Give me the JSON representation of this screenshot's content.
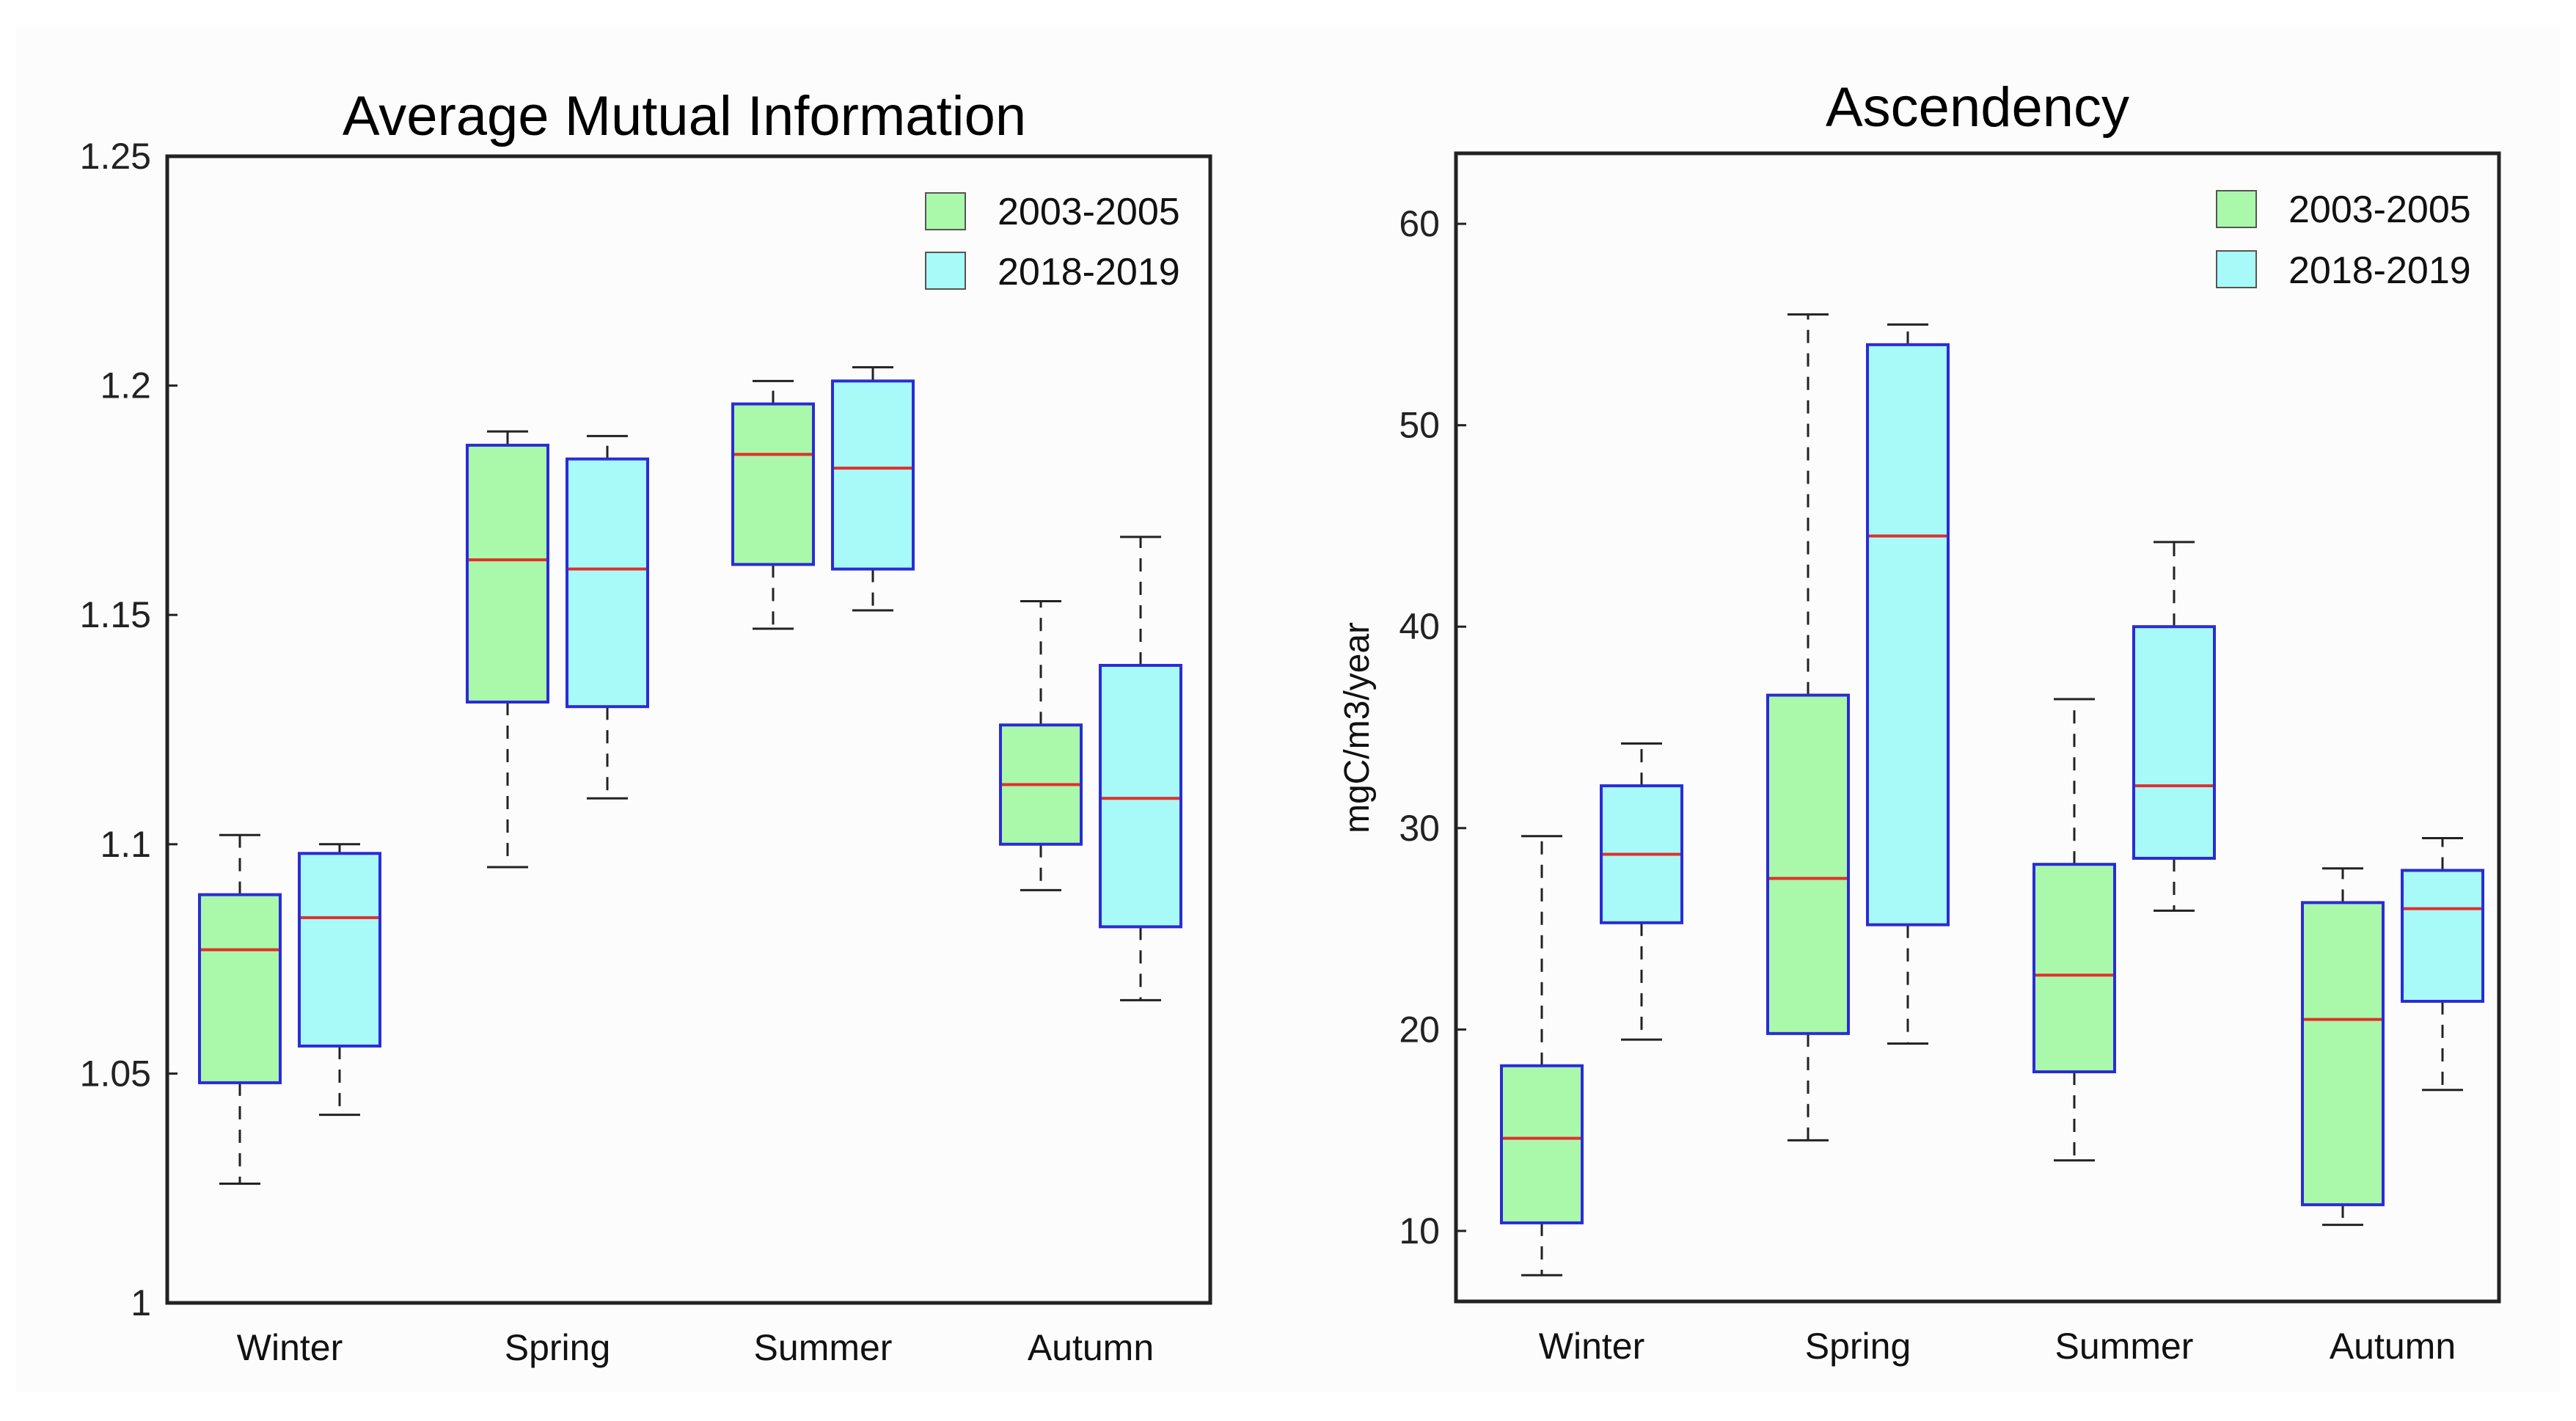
{
  "colors": {
    "background": "#fcfcfc",
    "box_edge": "#2b2bd6",
    "median": "#e0302c",
    "whisker": "#222222",
    "group_2003_2005": "#aaf8aa",
    "group_2018_2019": "#a8faf8"
  },
  "chart_data": [
    {
      "type": "boxplot",
      "title": "Average Mutual Information",
      "xlabel": "",
      "ylabel": "",
      "ylim": [
        1,
        1.25
      ],
      "yticks": [
        {
          "value": 1,
          "label": "1"
        },
        {
          "value": 1.05,
          "label": "1.05"
        },
        {
          "value": 1.1,
          "label": "1.1"
        },
        {
          "value": 1.15,
          "label": "1.15"
        },
        {
          "value": 1.2,
          "label": "1.2"
        },
        {
          "value": 1.25,
          "label": "1.25"
        }
      ],
      "categories": [
        "Winter",
        "Spring",
        "Summer",
        "Autumn"
      ],
      "legend": {
        "position": "top-right",
        "entries": [
          "2003-2005",
          "2018-2019"
        ]
      },
      "series": [
        {
          "name": "2003-2005",
          "color": "#aaf8aa",
          "boxes": [
            {
              "min": 1.026,
              "q1": 1.048,
              "median": 1.077,
              "q3": 1.089,
              "max": 1.102
            },
            {
              "min": 1.095,
              "q1": 1.131,
              "median": 1.162,
              "q3": 1.187,
              "max": 1.19
            },
            {
              "min": 1.147,
              "q1": 1.161,
              "median": 1.185,
              "q3": 1.196,
              "max": 1.201
            },
            {
              "min": 1.09,
              "q1": 1.1,
              "median": 1.113,
              "q3": 1.126,
              "max": 1.153
            }
          ]
        },
        {
          "name": "2018-2019",
          "color": "#a8faf8",
          "boxes": [
            {
              "min": 1.041,
              "q1": 1.056,
              "median": 1.084,
              "q3": 1.098,
              "max": 1.1
            },
            {
              "min": 1.11,
              "q1": 1.13,
              "median": 1.16,
              "q3": 1.184,
              "max": 1.189
            },
            {
              "min": 1.151,
              "q1": 1.16,
              "median": 1.182,
              "q3": 1.201,
              "max": 1.204
            },
            {
              "min": 1.066,
              "q1": 1.082,
              "median": 1.11,
              "q3": 1.139,
              "max": 1.167
            }
          ]
        }
      ]
    },
    {
      "type": "boxplot",
      "title": "Ascendency",
      "xlabel": "",
      "ylabel": "mgC/m3/year",
      "ylim": [
        6.5,
        63.5
      ],
      "yticks": [
        {
          "value": 10,
          "label": "10"
        },
        {
          "value": 20,
          "label": "20"
        },
        {
          "value": 30,
          "label": "30"
        },
        {
          "value": 40,
          "label": "40"
        },
        {
          "value": 50,
          "label": "50"
        },
        {
          "value": 60,
          "label": "60"
        }
      ],
      "categories": [
        "Winter",
        "Spring",
        "Summer",
        "Autumn"
      ],
      "legend": {
        "position": "top-right",
        "entries": [
          "2003-2005",
          "2018-2019"
        ]
      },
      "series": [
        {
          "name": "2003-2005",
          "color": "#aaf8aa",
          "boxes": [
            {
              "min": 7.8,
              "q1": 10.4,
              "median": 14.6,
              "q3": 18.2,
              "max": 29.6
            },
            {
              "min": 14.5,
              "q1": 19.8,
              "median": 27.5,
              "q3": 36.6,
              "max": 55.5
            },
            {
              "min": 13.5,
              "q1": 17.9,
              "median": 22.7,
              "q3": 28.2,
              "max": 36.4
            },
            {
              "min": 10.3,
              "q1": 11.3,
              "median": 20.5,
              "q3": 26.3,
              "max": 28
            }
          ]
        },
        {
          "name": "2018-2019",
          "color": "#a8faf8",
          "boxes": [
            {
              "min": 19.5,
              "q1": 25.3,
              "median": 28.7,
              "q3": 32.1,
              "max": 34.2
            },
            {
              "min": 19.3,
              "q1": 25.2,
              "median": 44.5,
              "q3": 54,
              "max": 55
            },
            {
              "min": 25.9,
              "q1": 28.5,
              "median": 32.1,
              "q3": 40,
              "max": 44.2
            },
            {
              "min": 17,
              "q1": 21.4,
              "median": 26,
              "q3": 27.9,
              "max": 29.5
            }
          ]
        }
      ]
    }
  ]
}
